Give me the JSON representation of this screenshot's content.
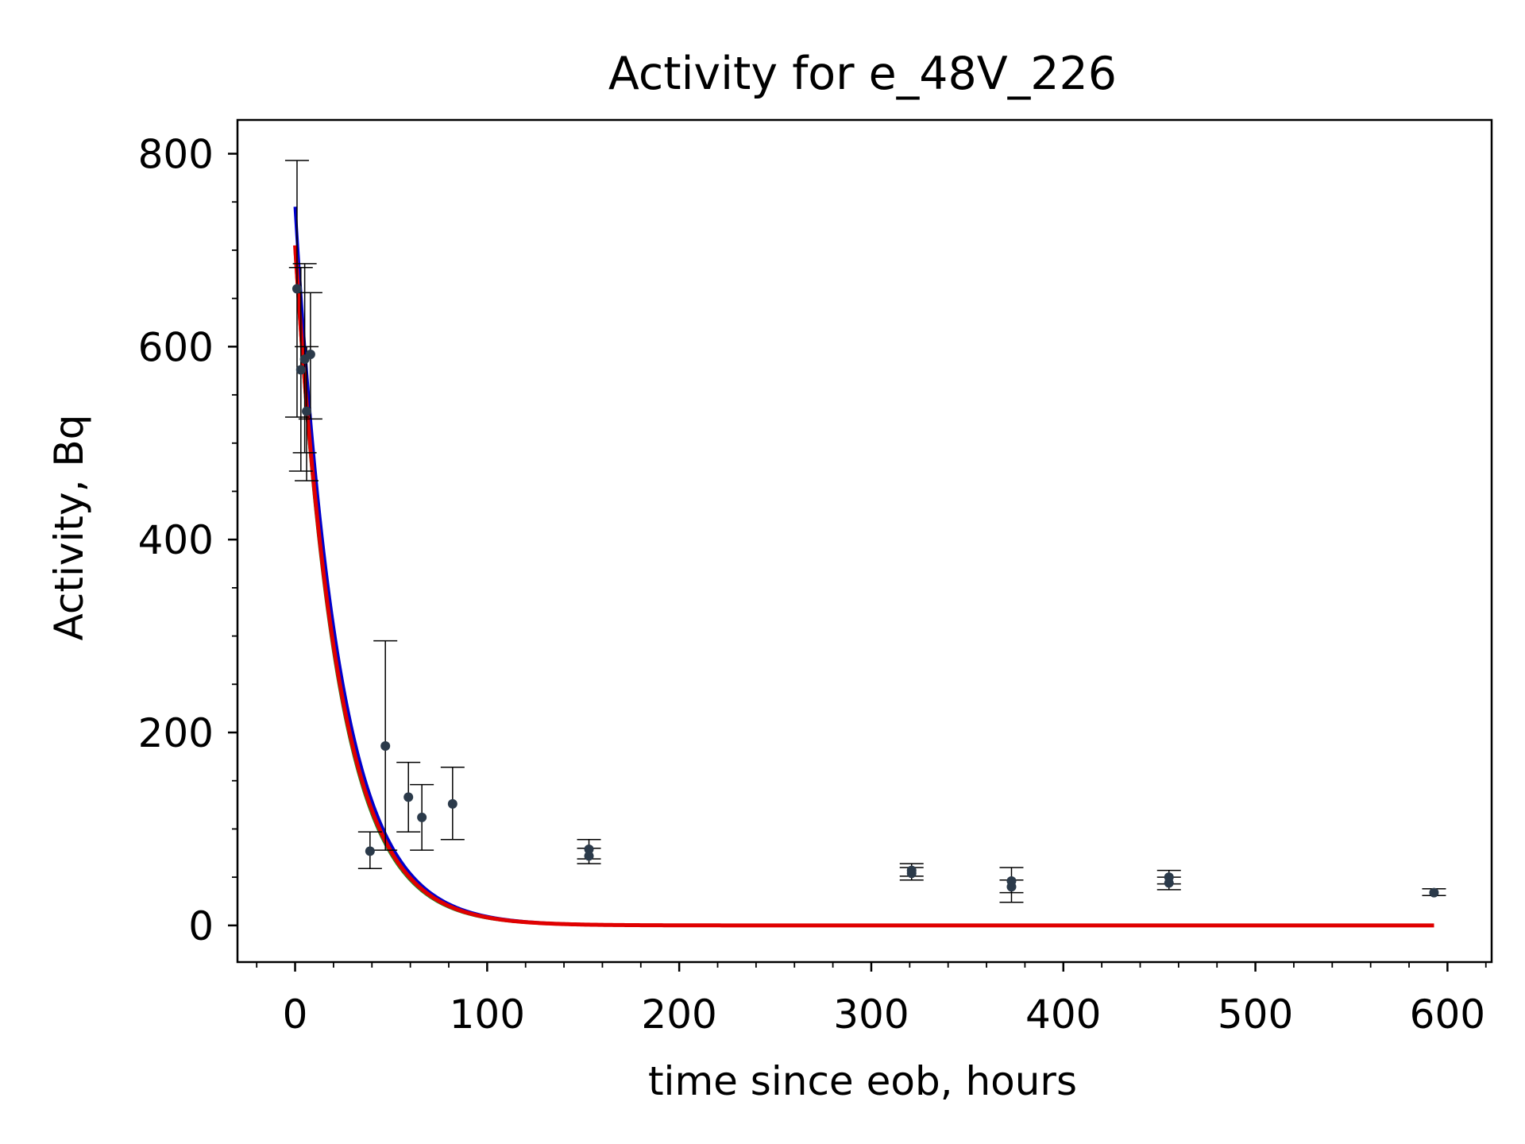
{
  "chart_data": {
    "type": "scatter",
    "title": "Activity for e_48V_226",
    "xlabel": "time since eob, hours",
    "ylabel": "Activity, Bq",
    "xlim": [
      -30,
      623
    ],
    "ylim": [
      -38,
      835
    ],
    "x_ticks": [
      0,
      100,
      200,
      300,
      400,
      500,
      600
    ],
    "x_tick_labels": [
      "0",
      "100",
      "200",
      "300",
      "400",
      "500",
      "600"
    ],
    "y_ticks": [
      0,
      200,
      400,
      600,
      800
    ],
    "y_tick_labels": [
      "0",
      "200",
      "400",
      "600",
      "800"
    ],
    "grid": false,
    "measurements": [
      {
        "x": 1,
        "y": 660,
        "ylow": 527,
        "yhigh": 793
      },
      {
        "x": 3,
        "y": 576,
        "ylow": 471,
        "yhigh": 682
      },
      {
        "x": 5,
        "y": 587,
        "ylow": 490,
        "yhigh": 686
      },
      {
        "x": 6,
        "y": 533,
        "ylow": 461,
        "yhigh": 600
      },
      {
        "x": 8,
        "y": 592,
        "ylow": 525,
        "yhigh": 656
      },
      {
        "x": 39,
        "y": 77,
        "ylow": 59,
        "yhigh": 97
      },
      {
        "x": 47,
        "y": 186,
        "ylow": 78,
        "yhigh": 295
      },
      {
        "x": 59,
        "y": 133,
        "ylow": 97,
        "yhigh": 169
      },
      {
        "x": 66,
        "y": 112,
        "ylow": 78,
        "yhigh": 146
      },
      {
        "x": 82,
        "y": 126,
        "ylow": 89,
        "yhigh": 164
      },
      {
        "x": 153,
        "y": 79,
        "ylow": 69,
        "yhigh": 89
      },
      {
        "x": 153,
        "y": 72,
        "ylow": 64,
        "yhigh": 80
      },
      {
        "x": 321,
        "y": 57,
        "ylow": 51,
        "yhigh": 64
      },
      {
        "x": 321,
        "y": 54,
        "ylow": 47,
        "yhigh": 60
      },
      {
        "x": 373,
        "y": 46,
        "ylow": 34,
        "yhigh": 60
      },
      {
        "x": 373,
        "y": 40,
        "ylow": 24,
        "yhigh": 47
      },
      {
        "x": 455,
        "y": 50,
        "ylow": 43,
        "yhigh": 57
      },
      {
        "x": 455,
        "y": 44,
        "ylow": 37,
        "yhigh": 50
      },
      {
        "x": 593,
        "y": 34,
        "ylow": 31,
        "yhigh": 38
      }
    ],
    "fit_curves": [
      {
        "color": "#0000cc",
        "A0": 745,
        "half_life_hours": 15.8
      },
      {
        "color": "#228b22",
        "A0": 700,
        "half_life_hours": 15.4
      },
      {
        "color": "#e00000",
        "A0": 705,
        "half_life_hours": 15.6
      }
    ],
    "fit_x_range": [
      0,
      593
    ],
    "colors": {
      "points": "#2b3a4a",
      "errorbars": "#000000",
      "axes": "#000000"
    }
  }
}
